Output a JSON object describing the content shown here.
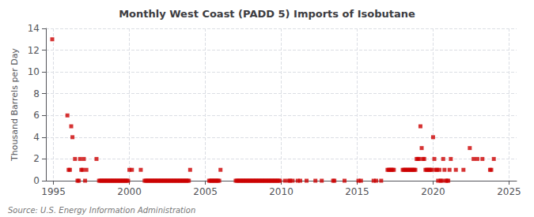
{
  "chart_data": {
    "type": "scatter",
    "title": "Monthly West Coast (PADD 5) Imports of Isobutane",
    "ylabel": "Thousand Barrels per Day",
    "annotations": [
      "Source: U.S. Energy Information Administration"
    ],
    "color": "#cc0000",
    "marker": "square",
    "grid": true,
    "xlim": [
      1994.5,
      2025.5
    ],
    "xticks": [
      1995,
      2000,
      2005,
      2010,
      2015,
      2020,
      2025
    ],
    "ylim": [
      0,
      14
    ],
    "yticks": [
      0,
      2,
      4,
      6,
      8,
      10,
      12,
      14
    ],
    "x": [
      1994.917,
      1995.917,
      1996.0,
      1996.083,
      1996.167,
      1996.25,
      1996.417,
      1996.583,
      1996.667,
      1996.75,
      1996.833,
      1996.917,
      1997.0,
      1997.083,
      1997.167,
      1997.833,
      1998.0,
      1998.083,
      1998.167,
      1998.25,
      1998.333,
      1998.417,
      1998.5,
      1998.583,
      1998.667,
      1998.75,
      1998.833,
      1998.917,
      1999.0,
      1999.083,
      1999.167,
      1999.25,
      1999.333,
      1999.417,
      1999.5,
      1999.583,
      1999.667,
      1999.75,
      1999.833,
      1999.917,
      2000.0,
      2000.167,
      2000.75,
      2001.0,
      2001.083,
      2001.167,
      2001.25,
      2001.333,
      2001.417,
      2001.5,
      2001.583,
      2001.667,
      2001.75,
      2001.833,
      2001.917,
      2002.0,
      2002.083,
      2002.167,
      2002.25,
      2002.333,
      2002.417,
      2002.5,
      2002.583,
      2002.667,
      2002.75,
      2002.833,
      2002.917,
      2003.0,
      2003.083,
      2003.167,
      2003.25,
      2003.333,
      2003.417,
      2003.5,
      2003.583,
      2003.667,
      2003.75,
      2003.833,
      2003.917,
      2004.0,
      2005.25,
      2005.333,
      2005.417,
      2005.5,
      2005.583,
      2005.667,
      2005.75,
      2005.833,
      2005.917,
      2006.0,
      2007.0,
      2007.083,
      2007.167,
      2007.25,
      2007.333,
      2007.417,
      2007.5,
      2007.583,
      2007.667,
      2007.75,
      2007.833,
      2007.917,
      2008.0,
      2008.083,
      2008.167,
      2008.25,
      2008.333,
      2008.417,
      2008.5,
      2008.583,
      2008.667,
      2008.75,
      2008.833,
      2008.917,
      2009.0,
      2009.083,
      2009.167,
      2009.25,
      2009.333,
      2009.417,
      2009.5,
      2009.583,
      2009.667,
      2009.75,
      2009.833,
      2009.917,
      2010.25,
      2010.5,
      2010.583,
      2010.75,
      2011.083,
      2011.25,
      2011.667,
      2012.25,
      2012.667,
      2013.417,
      2013.5,
      2014.167,
      2015.083,
      2015.25,
      2016.083,
      2016.25,
      2016.583,
      2017.0,
      2017.083,
      2017.167,
      2017.25,
      2017.333,
      2017.417,
      2018.0,
      2018.083,
      2018.167,
      2018.25,
      2018.333,
      2018.417,
      2018.5,
      2018.583,
      2018.667,
      2018.75,
      2018.833,
      2018.917,
      2019.0,
      2019.083,
      2019.167,
      2019.25,
      2019.333,
      2019.417,
      2019.5,
      2019.583,
      2019.667,
      2019.75,
      2019.833,
      2019.917,
      2020.0,
      2020.083,
      2020.167,
      2020.25,
      2020.333,
      2020.417,
      2020.5,
      2020.583,
      2020.667,
      2020.75,
      2020.833,
      2020.917,
      2021.0,
      2021.083,
      2021.167,
      2021.5,
      2022.0,
      2022.417,
      2022.667,
      2022.917,
      2023.25,
      2023.75,
      2023.833,
      2024.0
    ],
    "values": [
      13.0,
      6.0,
      1.0,
      1.0,
      5.0,
      4.0,
      2.0,
      0.0,
      0.0,
      2.0,
      1.0,
      1.0,
      2.0,
      0.0,
      1.0,
      2.0,
      0.0,
      0.0,
      0.0,
      0.0,
      0.0,
      0.0,
      0.0,
      0.0,
      0.0,
      0.0,
      0.0,
      0.0,
      0.0,
      0.0,
      0.0,
      0.0,
      0.0,
      0.0,
      0.0,
      0.0,
      0.0,
      0.0,
      0.0,
      0.0,
      1.0,
      1.0,
      1.0,
      0.0,
      0.0,
      0.0,
      0.0,
      0.0,
      0.0,
      0.0,
      0.0,
      0.0,
      0.0,
      0.0,
      0.0,
      0.0,
      0.0,
      0.0,
      0.0,
      0.0,
      0.0,
      0.0,
      0.0,
      0.0,
      0.0,
      0.0,
      0.0,
      0.0,
      0.0,
      0.0,
      0.0,
      0.0,
      0.0,
      0.0,
      0.0,
      0.0,
      0.0,
      0.0,
      0.0,
      1.0,
      0.0,
      0.0,
      0.0,
      0.0,
      0.0,
      0.0,
      0.0,
      0.0,
      0.0,
      1.0,
      0.0,
      0.0,
      0.0,
      0.0,
      0.0,
      0.0,
      0.0,
      0.0,
      0.0,
      0.0,
      0.0,
      0.0,
      0.0,
      0.0,
      0.0,
      0.0,
      0.0,
      0.0,
      0.0,
      0.0,
      0.0,
      0.0,
      0.0,
      0.0,
      0.0,
      0.0,
      0.0,
      0.0,
      0.0,
      0.0,
      0.0,
      0.0,
      0.0,
      0.0,
      0.0,
      0.0,
      0.0,
      0.0,
      0.0,
      0.0,
      0.0,
      0.0,
      0.0,
      0.0,
      0.0,
      0.0,
      0.0,
      0.0,
      0.0,
      0.0,
      0.0,
      0.0,
      0.0,
      1.0,
      1.0,
      1.0,
      1.0,
      1.0,
      1.0,
      1.0,
      1.0,
      1.0,
      1.0,
      1.0,
      1.0,
      1.0,
      1.0,
      1.0,
      1.0,
      1.0,
      2.0,
      2.0,
      2.0,
      5.0,
      3.0,
      2.0,
      2.0,
      1.0,
      1.0,
      1.0,
      1.0,
      1.0,
      1.0,
      4.0,
      2.0,
      1.0,
      1.0,
      0.0,
      1.0,
      0.0,
      0.0,
      2.0,
      1.0,
      0.0,
      0.0,
      0.0,
      1.0,
      2.0,
      1.0,
      1.0,
      3.0,
      2.0,
      2.0,
      2.0,
      1.0,
      1.0,
      2.0
    ]
  }
}
